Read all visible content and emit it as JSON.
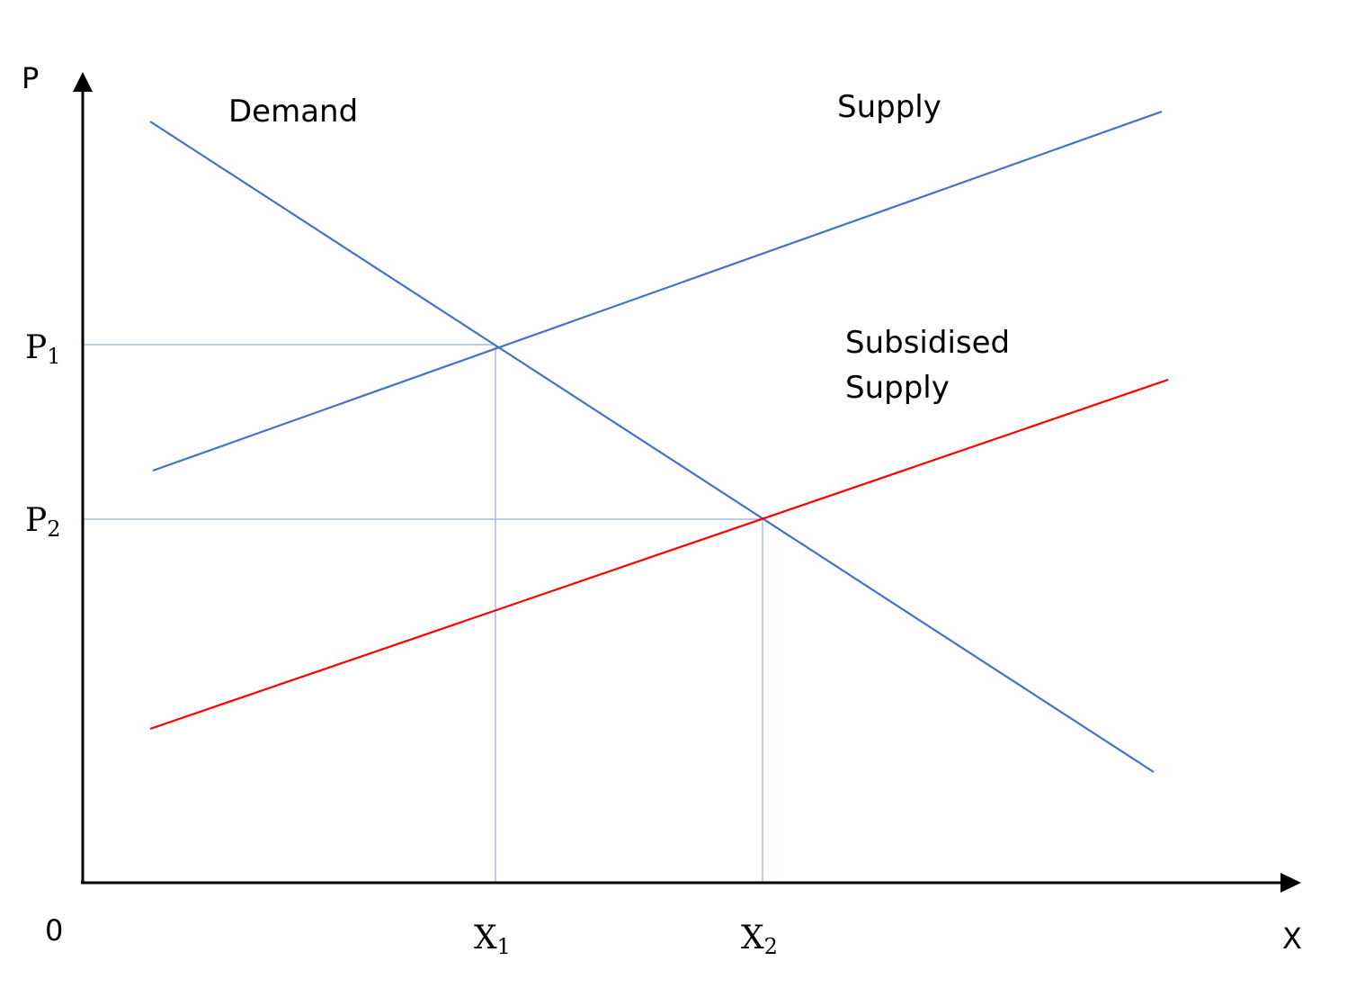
{
  "axes": {
    "y_label": "P",
    "x_label": "X",
    "origin_label": "0"
  },
  "curves": {
    "demand": {
      "label": "Demand",
      "color": "#4472C4"
    },
    "supply": {
      "label": "Supply",
      "color": "#4472C4"
    },
    "subsidised_supply": {
      "label_line1": "Subsidised",
      "label_line2": "Supply",
      "color": "#FF0000"
    }
  },
  "guides": {
    "color": "#A9BCE3"
  },
  "price_levels": [
    {
      "base": "P",
      "sub": "1"
    },
    {
      "base": "P",
      "sub": "2"
    }
  ],
  "quantity_levels": [
    {
      "base": "X",
      "sub": "1"
    },
    {
      "base": "X",
      "sub": "2"
    }
  ]
}
